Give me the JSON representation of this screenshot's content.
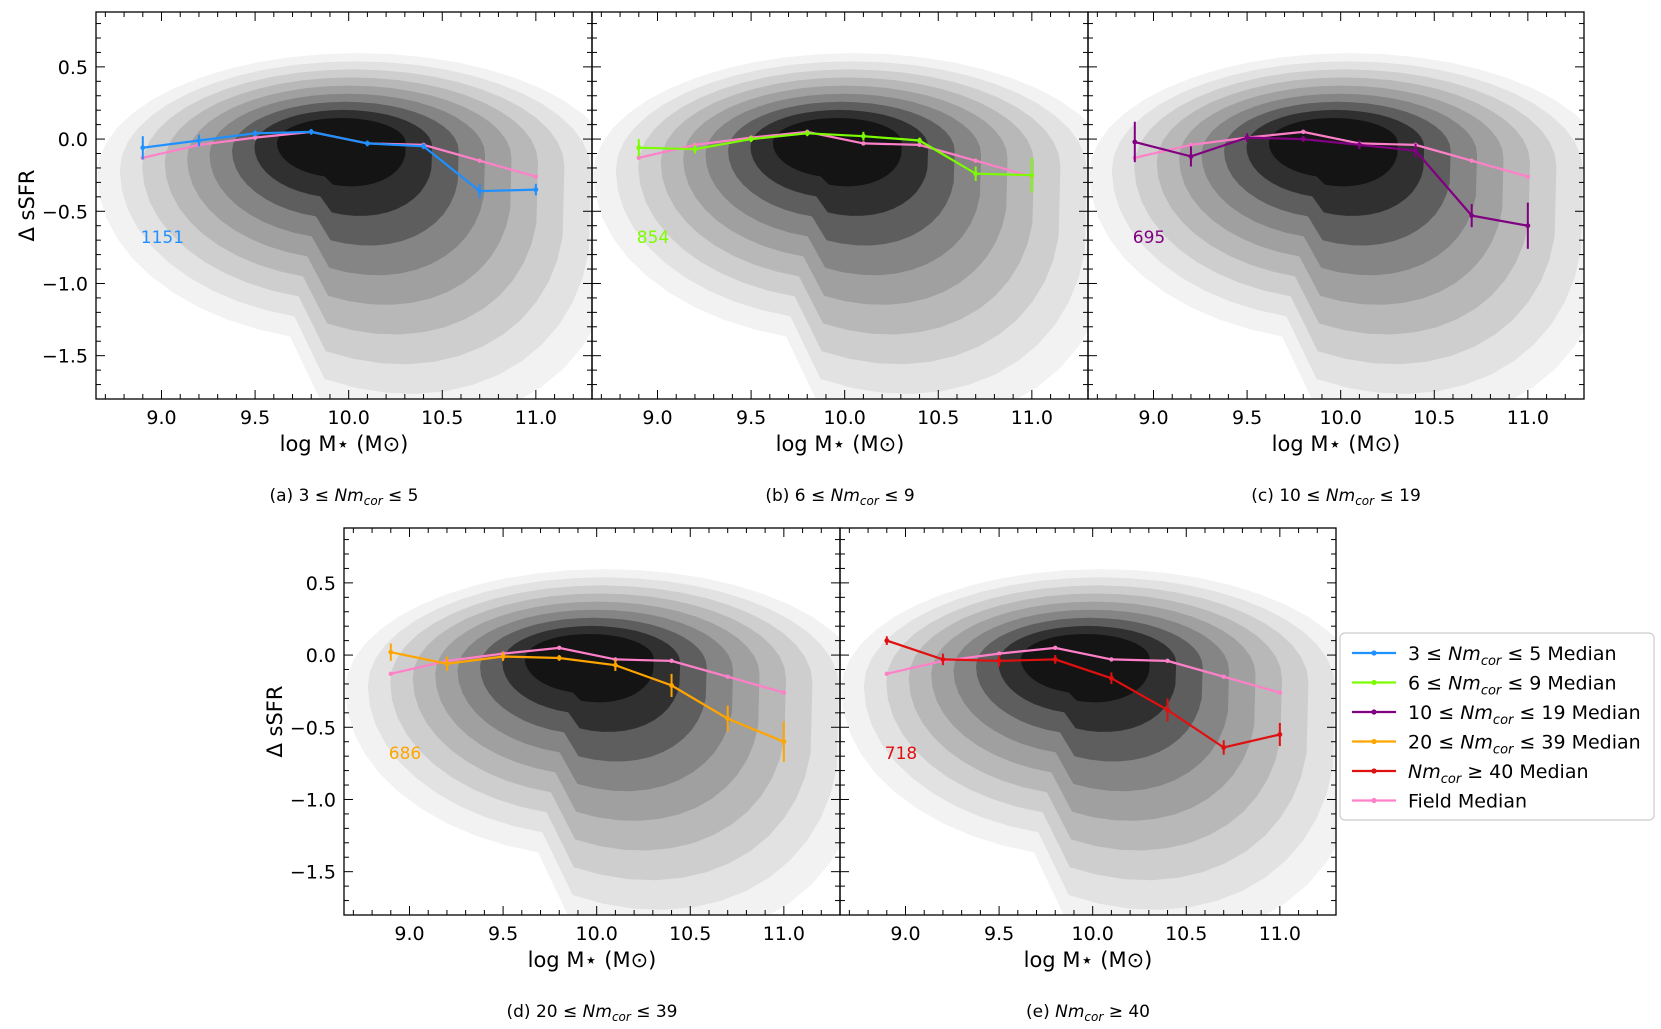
{
  "chart_data": [
    {
      "type": "line",
      "caption": "(a) 3 ≤ Nm_cor ≤ 5",
      "caption_prefix": "(a) 3 ≤ ",
      "caption_nm": "Nm",
      "caption_sub": "cor",
      "caption_suffix": " ≤ 5",
      "count": "1151",
      "color": "#1e90ff",
      "xlabel": "log M⋆ (M⊙)",
      "ylabel": "Δ sSFR",
      "xlim": [
        8.65,
        11.3
      ],
      "ylim": [
        -1.8,
        0.88
      ],
      "xticks": [
        "9.0",
        "9.5",
        "10.0",
        "10.5",
        "11.0"
      ],
      "yticks": [
        "0.5",
        "0.0",
        "−0.5",
        "−1.0",
        "−1.5"
      ],
      "show_ylabel": true,
      "show_yticklabels": true,
      "group_median": {
        "x": [
          8.9,
          9.2,
          9.5,
          9.8,
          10.1,
          10.4,
          10.7,
          11.0
        ],
        "y": [
          -0.06,
          -0.01,
          0.04,
          0.05,
          -0.03,
          -0.05,
          -0.36,
          -0.35
        ],
        "err": [
          0.08,
          0.04,
          0.02,
          0.02,
          0.02,
          0.02,
          0.05,
          0.04
        ]
      },
      "field_median": {
        "x": [
          8.9,
          9.2,
          9.5,
          9.8,
          10.1,
          10.4,
          10.7,
          11.0
        ],
        "y": [
          -0.13,
          -0.04,
          0.01,
          0.05,
          -0.03,
          -0.04,
          -0.15,
          -0.26
        ]
      }
    },
    {
      "type": "line",
      "caption": "(b) 6 ≤ Nm_cor ≤ 9",
      "caption_prefix": "(b) 6 ≤ ",
      "caption_nm": "Nm",
      "caption_sub": "cor",
      "caption_suffix": " ≤ 9",
      "count": "854",
      "color": "#7cfc00",
      "xlabel": "log M⋆ (M⊙)",
      "ylabel": "",
      "xlim": [
        8.65,
        11.3
      ],
      "ylim": [
        -1.8,
        0.88
      ],
      "xticks": [
        "9.0",
        "9.5",
        "10.0",
        "10.5",
        "11.0"
      ],
      "yticks": [
        "",
        "",
        "",
        "",
        ""
      ],
      "show_ylabel": false,
      "show_yticklabels": false,
      "group_median": {
        "x": [
          8.9,
          9.2,
          9.5,
          9.8,
          10.1,
          10.4,
          10.7,
          11.0
        ],
        "y": [
          -0.06,
          -0.07,
          0.0,
          0.04,
          0.02,
          -0.01,
          -0.24,
          -0.25
        ],
        "err": [
          0.06,
          0.03,
          0.02,
          0.02,
          0.03,
          0.02,
          0.05,
          0.12
        ]
      },
      "field_median": {
        "x": [
          8.9,
          9.2,
          9.5,
          9.8,
          10.1,
          10.4,
          10.7,
          11.0
        ],
        "y": [
          -0.13,
          -0.04,
          0.01,
          0.05,
          -0.03,
          -0.04,
          -0.15,
          -0.26
        ]
      }
    },
    {
      "type": "line",
      "caption": "(c) 10 ≤ Nm_cor ≤ 19",
      "caption_prefix": "(c) 10 ≤ ",
      "caption_nm": "Nm",
      "caption_sub": "cor",
      "caption_suffix": " ≤ 19",
      "count": "695",
      "color": "#800080",
      "xlabel": "log M⋆ (M⊙)",
      "ylabel": "",
      "xlim": [
        8.65,
        11.3
      ],
      "ylim": [
        -1.8,
        0.88
      ],
      "xticks": [
        "9.0",
        "9.5",
        "10.0",
        "10.5",
        "11.0"
      ],
      "yticks": [
        "",
        "",
        "",
        "",
        ""
      ],
      "show_ylabel": false,
      "show_yticklabels": false,
      "group_median": {
        "x": [
          8.9,
          9.2,
          9.5,
          9.8,
          10.1,
          10.4,
          10.7,
          11.0
        ],
        "y": [
          -0.02,
          -0.12,
          0.01,
          0.0,
          -0.04,
          -0.08,
          -0.53,
          -0.6
        ],
        "err": [
          0.14,
          0.07,
          0.03,
          0.02,
          0.03,
          0.05,
          0.08,
          0.16
        ]
      },
      "field_median": {
        "x": [
          8.9,
          9.2,
          9.5,
          9.8,
          10.1,
          10.4,
          10.7,
          11.0
        ],
        "y": [
          -0.13,
          -0.04,
          0.01,
          0.05,
          -0.03,
          -0.04,
          -0.15,
          -0.26
        ]
      }
    },
    {
      "type": "line",
      "caption": "(d) 20 ≤ Nm_cor ≤ 39",
      "caption_prefix": "(d) 20 ≤ ",
      "caption_nm": "Nm",
      "caption_sub": "cor",
      "caption_suffix": " ≤ 39",
      "count": "686",
      "color": "#ffa500",
      "xlabel": "log M⋆ (M⊙)",
      "ylabel": "Δ sSFR",
      "xlim": [
        8.65,
        11.3
      ],
      "ylim": [
        -1.8,
        0.88
      ],
      "xticks": [
        "9.0",
        "9.5",
        "10.0",
        "10.5",
        "11.0"
      ],
      "yticks": [
        "0.5",
        "0.0",
        "−0.5",
        "−1.0",
        "−1.5"
      ],
      "show_ylabel": true,
      "show_yticklabels": true,
      "group_median": {
        "x": [
          8.9,
          9.2,
          9.5,
          9.8,
          10.1,
          10.4,
          10.7,
          11.0
        ],
        "y": [
          0.02,
          -0.06,
          -0.01,
          -0.02,
          -0.07,
          -0.21,
          -0.44,
          -0.6
        ],
        "err": [
          0.06,
          0.05,
          0.03,
          0.02,
          0.04,
          0.08,
          0.09,
          0.14
        ]
      },
      "field_median": {
        "x": [
          8.9,
          9.2,
          9.5,
          9.8,
          10.1,
          10.4,
          10.7,
          11.0
        ],
        "y": [
          -0.13,
          -0.04,
          0.01,
          0.05,
          -0.03,
          -0.04,
          -0.15,
          -0.26
        ]
      }
    },
    {
      "type": "line",
      "caption": "(e) Nm_cor ≥ 40",
      "caption_prefix": "(e) ",
      "caption_nm": "Nm",
      "caption_sub": "cor",
      "caption_suffix": " ≥ 40",
      "count": "718",
      "color": "#e01010",
      "xlabel": "log M⋆ (M⊙)",
      "ylabel": "",
      "xlim": [
        8.65,
        11.3
      ],
      "ylim": [
        -1.8,
        0.88
      ],
      "xticks": [
        "9.0",
        "9.5",
        "10.0",
        "10.5",
        "11.0"
      ],
      "yticks": [
        "",
        "",
        "",
        "",
        ""
      ],
      "show_ylabel": false,
      "show_yticklabels": false,
      "group_median": {
        "x": [
          8.9,
          9.2,
          9.5,
          9.8,
          10.1,
          10.4,
          10.7,
          11.0
        ],
        "y": [
          0.1,
          -0.03,
          -0.04,
          -0.03,
          -0.16,
          -0.38,
          -0.64,
          -0.55
        ],
        "err": [
          0.03,
          0.04,
          0.04,
          0.03,
          0.04,
          0.08,
          0.05,
          0.08
        ]
      },
      "field_median": {
        "x": [
          8.9,
          9.2,
          9.5,
          9.8,
          10.1,
          10.4,
          10.7,
          11.0
        ],
        "y": [
          -0.13,
          -0.04,
          0.01,
          0.05,
          -0.03,
          -0.04,
          -0.15,
          -0.26
        ]
      }
    }
  ],
  "legend": {
    "placement": "right",
    "entries": [
      {
        "prefix": "3 ≤ ",
        "nm": "Nm",
        "sub": "cor",
        "suffix": " ≤ 5 Median",
        "color": "#1e90ff"
      },
      {
        "prefix": "6 ≤ ",
        "nm": "Nm",
        "sub": "cor",
        "suffix": " ≤ 9 Median",
        "color": "#7cfc00"
      },
      {
        "prefix": "10 ≤ ",
        "nm": "Nm",
        "sub": "cor",
        "suffix": " ≤ 19 Median",
        "color": "#800080"
      },
      {
        "prefix": "20 ≤ ",
        "nm": "Nm",
        "sub": "cor",
        "suffix": " ≤ 39 Median",
        "color": "#ffa500"
      },
      {
        "prefix": "",
        "nm": "Nm",
        "sub": "cor",
        "suffix": " ≥ 40 Median",
        "color": "#e01010"
      },
      {
        "prefix": "Field Median",
        "nm": "",
        "sub": "",
        "suffix": "",
        "color": "#ff80c8"
      }
    ]
  },
  "density_contours": {
    "center_x": 9.95,
    "center_y": 0.0,
    "levels": [
      {
        "fill": "#f2f2f2"
      },
      {
        "fill": "#e2e2e2"
      },
      {
        "fill": "#cecece"
      },
      {
        "fill": "#b8b8b8"
      },
      {
        "fill": "#a0a0a0"
      },
      {
        "fill": "#858585"
      },
      {
        "fill": "#5e5e5e"
      },
      {
        "fill": "#303030"
      },
      {
        "fill": "#141414"
      }
    ]
  }
}
